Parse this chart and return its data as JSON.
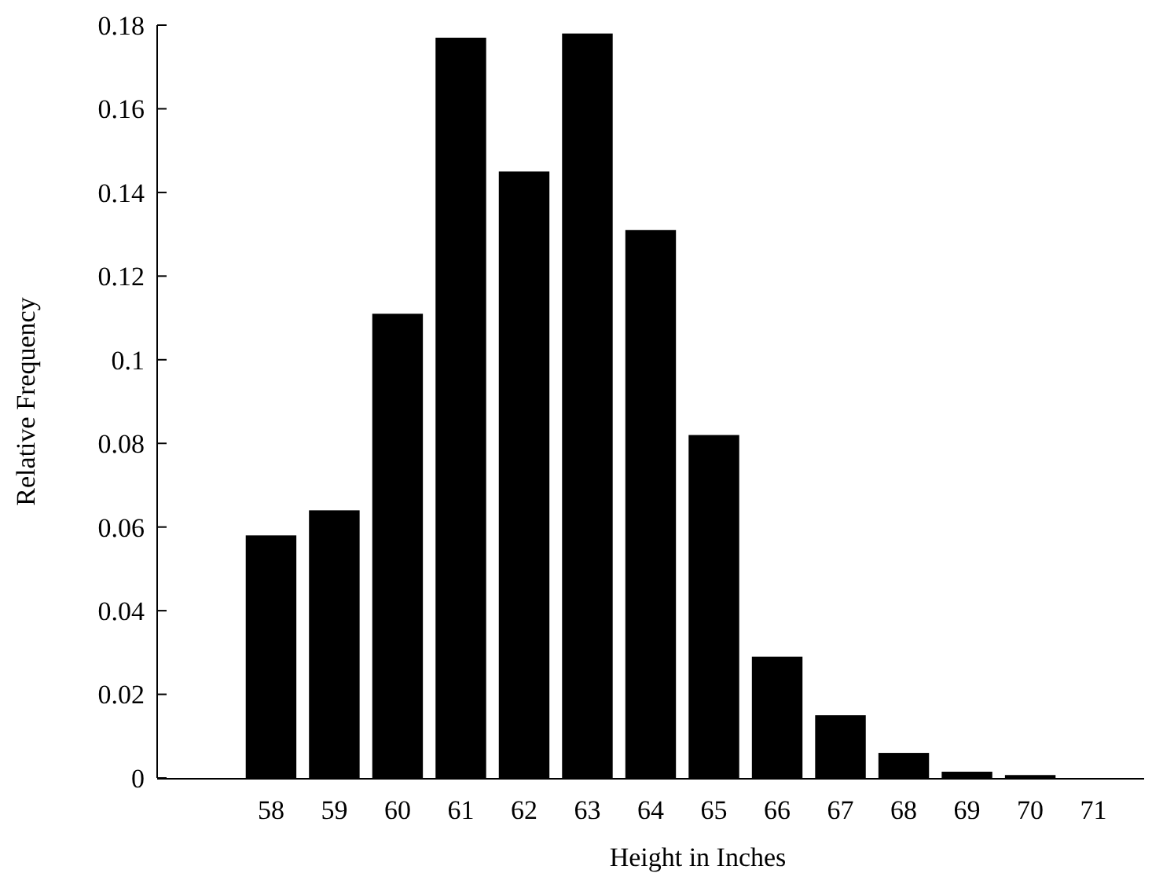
{
  "chart_data": {
    "type": "bar",
    "xlabel": "Height in Inches",
    "ylabel": "Relative Frequency",
    "categories": [
      null,
      "58",
      "59",
      "60",
      "61",
      "62",
      "63",
      "64",
      "65",
      "66",
      "67",
      "68",
      "69",
      "70",
      "71"
    ],
    "values": [
      null,
      0.058,
      0.064,
      0.111,
      0.177,
      0.145,
      0.178,
      0.131,
      0.082,
      0.029,
      0.015,
      0.006,
      0.0015,
      0.0007,
      null
    ],
    "color": "#000000",
    "ylim": [
      0,
      0.18
    ],
    "yticks": [
      0,
      0.02,
      0.04,
      0.06,
      0.08,
      {
        "value": 0.1,
        "label": "0.1"
      },
      0.12,
      0.14,
      0.16,
      0.18
    ],
    "grid": false
  }
}
